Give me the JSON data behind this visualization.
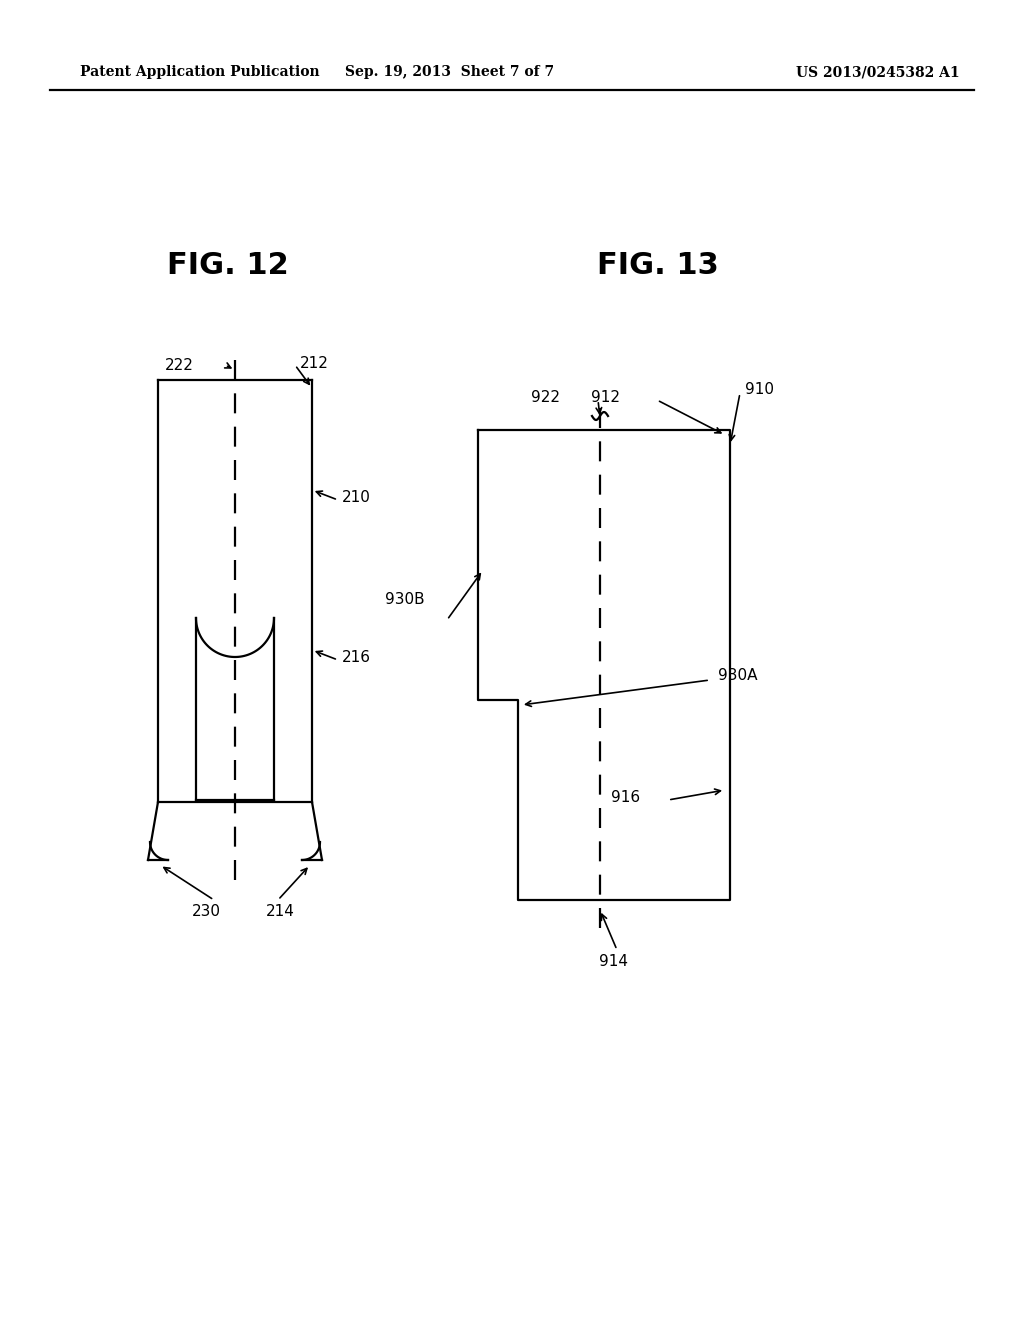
{
  "bg_color": "#ffffff",
  "line_color": "#000000",
  "header_left": "Patent Application Publication",
  "header_center": "Sep. 19, 2013  Sheet 7 of 7",
  "header_right": "US 2013/0245382 A1",
  "fig12_title": "FIG. 12",
  "fig13_title": "FIG. 13"
}
